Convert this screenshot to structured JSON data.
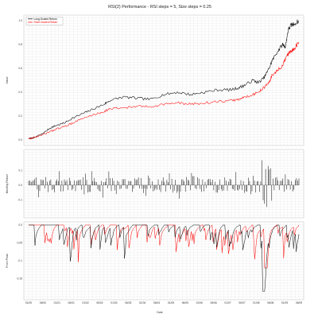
{
  "chart_data": {
    "type": "line",
    "title": "RSI(2) Performance - RSI steps = 5, Size steps = 0.25",
    "xlabel": "Date",
    "x_ticks": [
      "01/00",
      "06/00",
      "01/01",
      "06/01",
      "01/02",
      "06/02",
      "01/03",
      "06/03",
      "01/04",
      "06/04",
      "01/05",
      "06/05",
      "01/06",
      "06/06",
      "01/07",
      "06/07",
      "01/08",
      "06/08",
      "01/09",
      "06/09"
    ],
    "legend": {
      "placement": "top-left",
      "entries": [
        "Long-Scaled Return",
        "Short-Scaled Return"
      ]
    },
    "colors": {
      "long": "#000000",
      "short": "#ff0000",
      "grid": "#e2e2e2",
      "frame": "#bcbcbc"
    },
    "grid": true,
    "panels": [
      {
        "name": "value",
        "ylabel": "Value",
        "ylim": [
          -0.02,
          1.02
        ],
        "yticks": [
          0.0,
          0.2,
          0.4,
          0.6,
          0.8,
          1.0
        ],
        "series": [
          {
            "name": "Long-Scaled Return",
            "x": [
              0,
              0.02,
              0.05,
              0.08,
              0.1,
              0.13,
              0.16,
              0.2,
              0.24,
              0.28,
              0.3,
              0.35,
              0.4,
              0.45,
              0.5,
              0.55,
              0.6,
              0.65,
              0.7,
              0.75,
              0.78,
              0.8,
              0.83,
              0.85,
              0.87,
              0.89,
              0.9,
              0.92,
              0.94,
              0.95,
              0.96,
              0.97,
              0.98,
              1.0
            ],
            "y": [
              0.01,
              0.02,
              0.05,
              0.1,
              0.12,
              0.14,
              0.18,
              0.22,
              0.26,
              0.3,
              0.33,
              0.36,
              0.35,
              0.34,
              0.38,
              0.4,
              0.38,
              0.4,
              0.42,
              0.42,
              0.44,
              0.46,
              0.5,
              0.48,
              0.52,
              0.6,
              0.66,
              0.74,
              0.8,
              0.78,
              0.92,
              0.96,
              0.97,
              1.0
            ]
          },
          {
            "name": "Short-Scaled Return",
            "x": [
              0,
              0.02,
              0.05,
              0.08,
              0.1,
              0.13,
              0.16,
              0.2,
              0.24,
              0.28,
              0.3,
              0.35,
              0.4,
              0.45,
              0.5,
              0.55,
              0.6,
              0.65,
              0.7,
              0.75,
              0.78,
              0.8,
              0.83,
              0.85,
              0.87,
              0.89,
              0.9,
              0.92,
              0.94,
              0.95,
              0.96,
              0.97,
              0.98,
              1.0
            ],
            "y": [
              0.01,
              0.02,
              0.04,
              0.07,
              0.09,
              0.11,
              0.14,
              0.18,
              0.21,
              0.24,
              0.26,
              0.27,
              0.28,
              0.28,
              0.3,
              0.31,
              0.3,
              0.31,
              0.32,
              0.33,
              0.34,
              0.36,
              0.38,
              0.4,
              0.44,
              0.48,
              0.54,
              0.58,
              0.62,
              0.68,
              0.72,
              0.74,
              0.76,
              0.82
            ]
          }
        ]
      },
      {
        "name": "monthly-return",
        "ylabel": "Monthly Return",
        "ylim": [
          -0.2,
          0.22
        ],
        "yticks": [
          -0.1,
          0.0,
          0.1
        ]
      },
      {
        "name": "drawdown",
        "ylabel": "From Peak",
        "ylim": [
          -0.2,
          0.0
        ],
        "yticks": [
          -0.15,
          -0.1,
          -0.05,
          0.0
        ]
      }
    ]
  }
}
